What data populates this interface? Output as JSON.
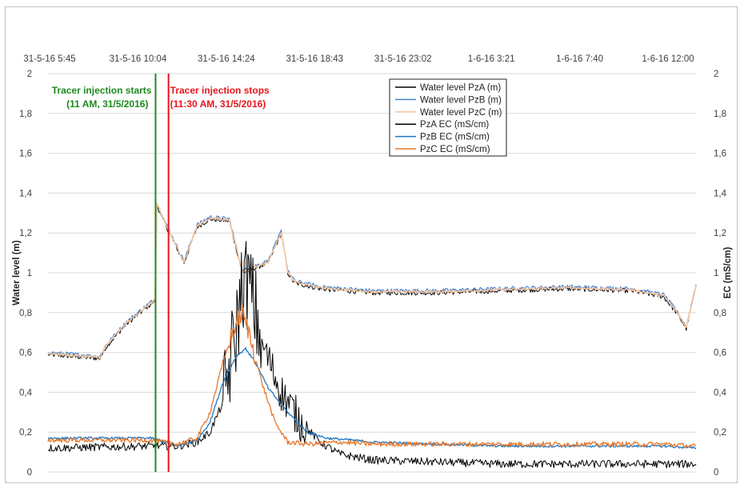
{
  "chart_data": {
    "type": "line",
    "xlabel": "",
    "ylabel": "Water level (m)",
    "y2label": "EC (mS/cm)",
    "x_tick_labels": [
      "31-5-16 5:45",
      "31-5-16 10:04",
      "31-5-16 14:24",
      "31-5-16 18:43",
      "31-5-16 23:02",
      "1-6-16 3:21",
      "1-6-16 7:40",
      "1-6-16 12:00"
    ],
    "x_axis_position": "top",
    "xlim": [
      0,
      1
    ],
    "ylim": [
      0,
      2
    ],
    "y2lim": [
      0,
      2
    ],
    "y_ticks": [
      "0",
      "0,2",
      "0,4",
      "0,6",
      "0,8",
      "1",
      "1,2",
      "1,4",
      "1,6",
      "1,8",
      "2"
    ],
    "grid": true,
    "legend_position": "top-center",
    "annotations": [
      {
        "id": "start",
        "text_line1": "Tracer injection starts",
        "text_line2": "(11 AM, 31/5/2016)",
        "x": 0.166,
        "color": "#1e8a1e"
      },
      {
        "id": "stop",
        "text_line1": "Tracer injection stops",
        "text_line2": "(11:30 AM, 31/5/2016)",
        "x": 0.186,
        "color": "#e8141b"
      }
    ],
    "series": [
      {
        "name": "Water level PzA (m)",
        "color": "#000000",
        "width": 1,
        "noise": 0.012,
        "x": [
          0,
          0.08,
          0.09,
          0.12,
          0.15,
          0.165,
          0.168,
          0.18,
          0.21,
          0.23,
          0.25,
          0.28,
          0.3,
          0.34,
          0.36,
          0.37,
          0.38,
          0.42,
          0.5,
          0.6,
          0.7,
          0.8,
          0.9,
          0.95,
          0.97,
          0.985,
          1.0
        ],
        "y": [
          0.59,
          0.57,
          0.63,
          0.74,
          0.82,
          0.86,
          1.34,
          1.25,
          1.05,
          1.23,
          1.27,
          1.26,
          1.0,
          1.05,
          1.2,
          1.0,
          0.95,
          0.92,
          0.9,
          0.9,
          0.91,
          0.92,
          0.91,
          0.88,
          0.8,
          0.72,
          0.93
        ]
      },
      {
        "name": "Water level PzB (m)",
        "color": "#4a86d0",
        "width": 1.2,
        "noise": 0.01,
        "x": [
          0,
          0.08,
          0.09,
          0.12,
          0.15,
          0.165,
          0.168,
          0.18,
          0.21,
          0.23,
          0.25,
          0.28,
          0.3,
          0.34,
          0.36,
          0.37,
          0.38,
          0.42,
          0.5,
          0.6,
          0.7,
          0.8,
          0.9,
          0.95,
          0.97,
          0.985,
          1.0
        ],
        "y": [
          0.6,
          0.58,
          0.64,
          0.75,
          0.83,
          0.87,
          1.35,
          1.26,
          1.06,
          1.24,
          1.28,
          1.27,
          1.01,
          1.06,
          1.21,
          1.01,
          0.96,
          0.93,
          0.91,
          0.91,
          0.92,
          0.93,
          0.92,
          0.89,
          0.81,
          0.73,
          0.94
        ]
      },
      {
        "name": "Water level PzC (m)",
        "color": "#f7c59f",
        "width": 1.6,
        "noise": 0.006,
        "x": [
          0,
          0.08,
          0.09,
          0.12,
          0.15,
          0.165,
          0.168,
          0.18,
          0.21,
          0.23,
          0.25,
          0.28,
          0.3,
          0.34,
          0.36,
          0.37,
          0.38,
          0.42,
          0.5,
          0.6,
          0.7,
          0.8,
          0.9,
          0.95,
          0.97,
          0.985,
          1.0
        ],
        "y": [
          0.595,
          0.575,
          0.635,
          0.745,
          0.825,
          0.865,
          1.345,
          1.255,
          1.055,
          1.235,
          1.275,
          1.265,
          1.005,
          1.055,
          1.205,
          1.005,
          0.955,
          0.925,
          0.905,
          0.905,
          0.915,
          0.925,
          0.915,
          0.885,
          0.805,
          0.725,
          0.935
        ]
      },
      {
        "name": "PzA EC (mS/cm)",
        "color": "#000000",
        "width": 1,
        "noise": 0.02,
        "x": [
          0,
          0.16,
          0.2,
          0.23,
          0.25,
          0.27,
          0.29,
          0.3,
          0.31,
          0.33,
          0.36,
          0.39,
          0.42,
          0.45,
          0.5,
          0.6,
          0.7,
          0.8,
          0.9,
          0.95,
          1.0
        ],
        "y": [
          0.12,
          0.13,
          0.13,
          0.15,
          0.2,
          0.35,
          0.7,
          0.95,
          0.95,
          0.65,
          0.4,
          0.25,
          0.15,
          0.09,
          0.06,
          0.05,
          0.04,
          0.04,
          0.04,
          0.04,
          0.04
        ]
      },
      {
        "name": "PzB EC (mS/cm)",
        "color": "#1f77c4",
        "width": 1.3,
        "noise": 0.006,
        "x": [
          0,
          0.16,
          0.2,
          0.23,
          0.25,
          0.27,
          0.29,
          0.305,
          0.32,
          0.34,
          0.37,
          0.4,
          0.43,
          0.47,
          0.5,
          0.6,
          0.7,
          0.8,
          0.9,
          0.95,
          1.0
        ],
        "y": [
          0.17,
          0.17,
          0.13,
          0.16,
          0.25,
          0.45,
          0.58,
          0.62,
          0.55,
          0.42,
          0.3,
          0.2,
          0.17,
          0.16,
          0.15,
          0.14,
          0.13,
          0.13,
          0.13,
          0.13,
          0.12
        ]
      },
      {
        "name": "PzC EC (mS/cm)",
        "color": "#e8772a",
        "width": 1.3,
        "noise": 0.012,
        "x": [
          0,
          0.16,
          0.2,
          0.23,
          0.25,
          0.27,
          0.29,
          0.3,
          0.31,
          0.33,
          0.35,
          0.37,
          0.4,
          0.45,
          0.5,
          0.6,
          0.7,
          0.8,
          0.9,
          0.95,
          1.0
        ],
        "y": [
          0.16,
          0.16,
          0.14,
          0.17,
          0.3,
          0.55,
          0.75,
          0.8,
          0.7,
          0.45,
          0.25,
          0.15,
          0.14,
          0.15,
          0.14,
          0.14,
          0.14,
          0.14,
          0.14,
          0.14,
          0.13
        ]
      }
    ]
  }
}
